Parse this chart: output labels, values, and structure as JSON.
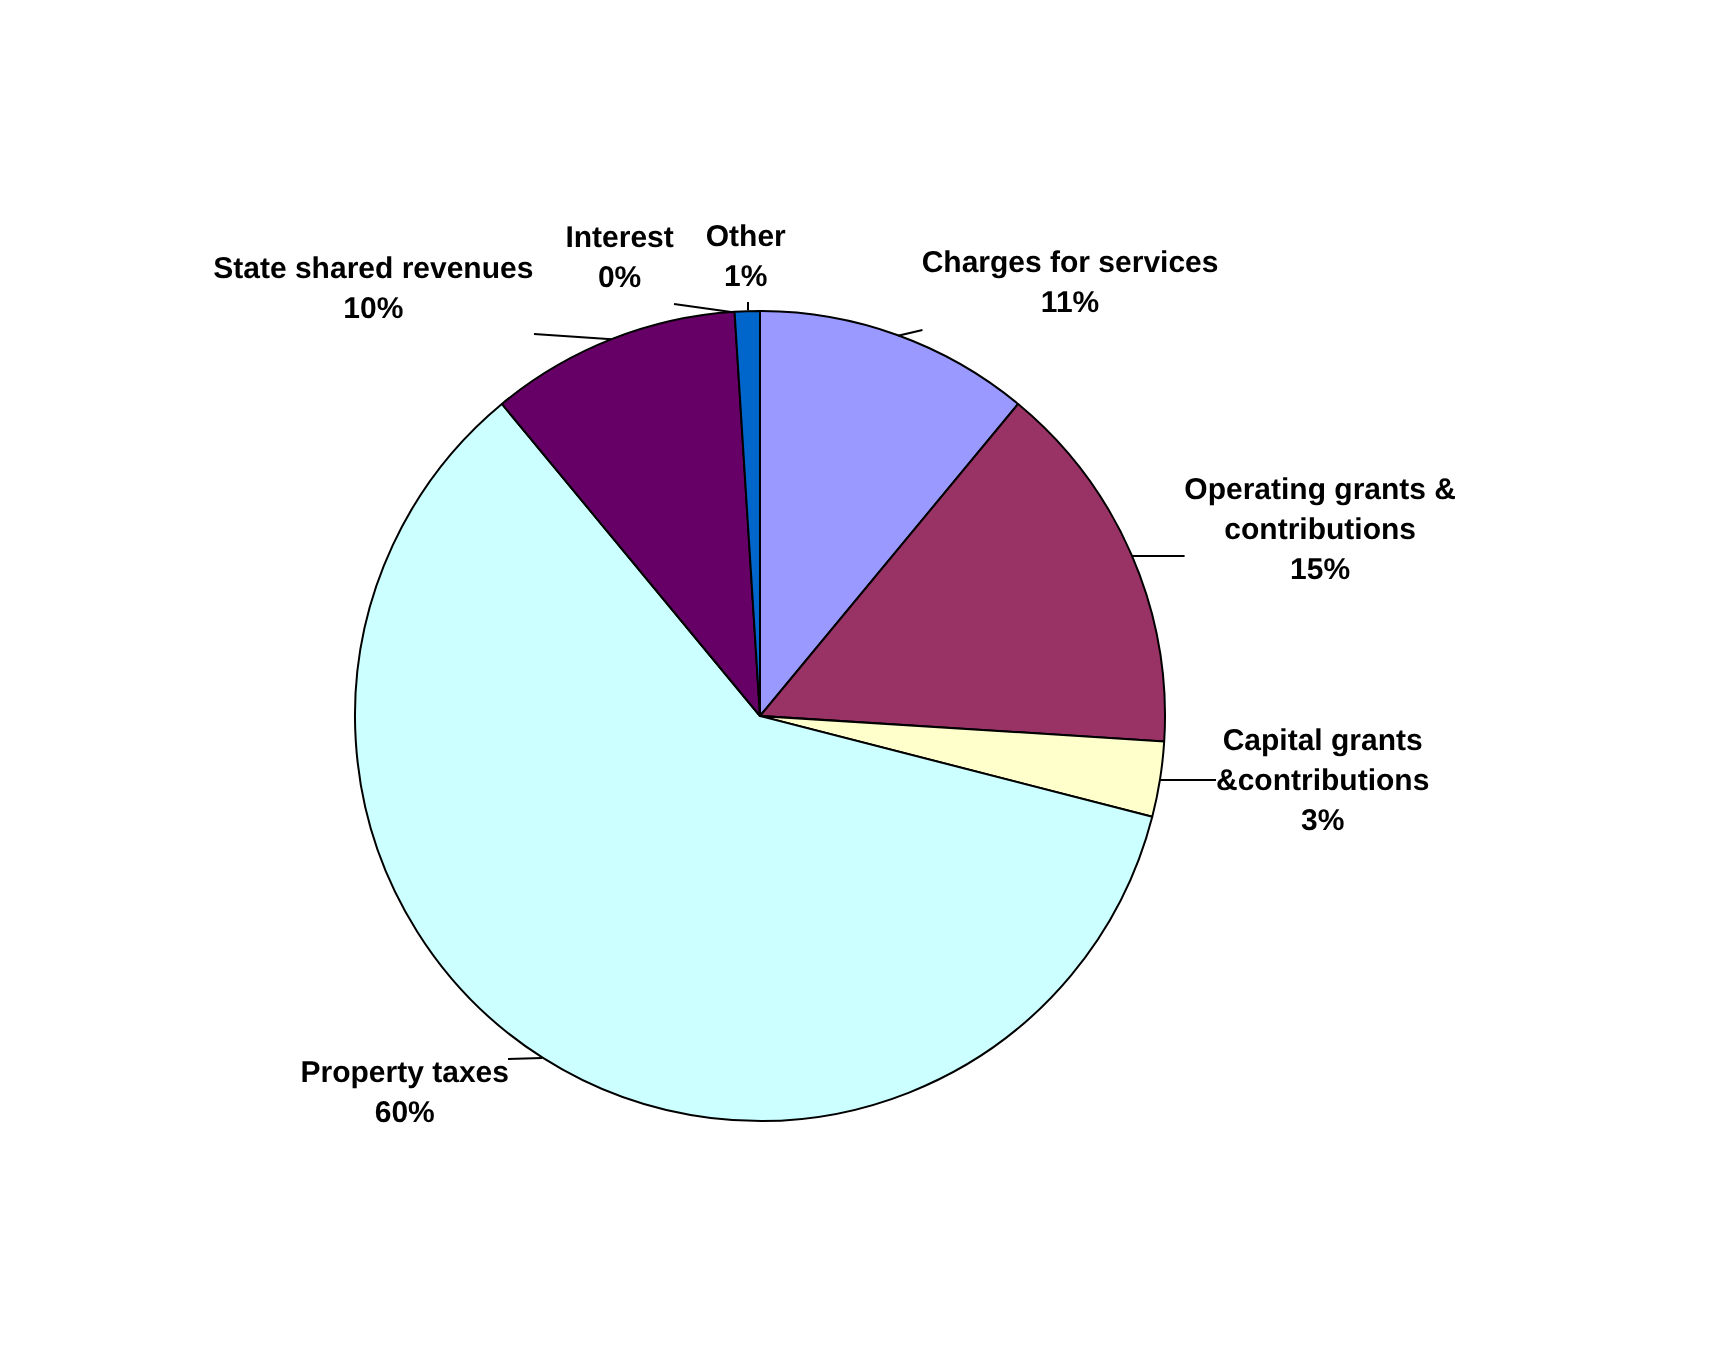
{
  "chart_data": {
    "type": "pie",
    "categories": [
      "Charges for services",
      "Operating grants & contributions",
      "Capital grants &contributions",
      "Property taxes",
      "State shared revenues",
      "Interest",
      "Other"
    ],
    "values": [
      11,
      15,
      3,
      60,
      10,
      0,
      1
    ],
    "colors": [
      "#9999ff",
      "#993366",
      "#ffffcc",
      "#ccffff",
      "#660066",
      "#ff8080",
      "#0066cc"
    ],
    "value_labels": [
      "11%",
      "15%",
      "3%",
      "60%",
      "10%",
      "0%",
      "1%"
    ],
    "legend": false
  }
}
